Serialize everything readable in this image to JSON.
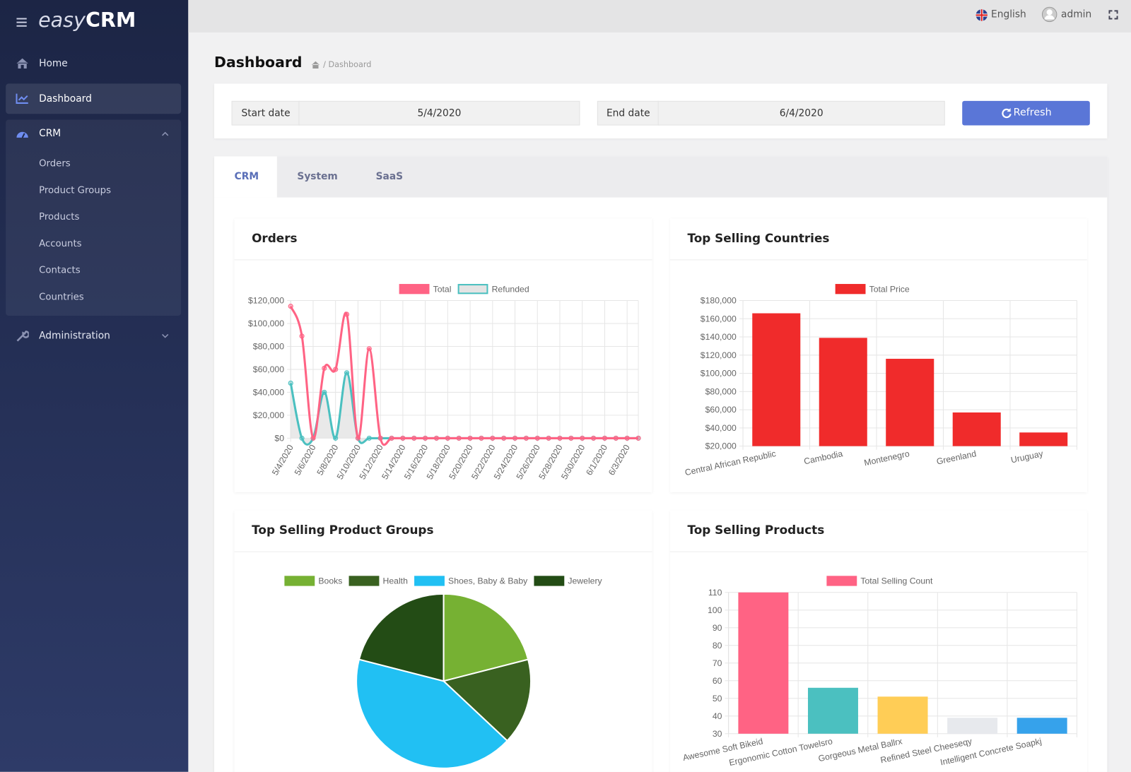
{
  "sidebar": {
    "logo_light": "easy",
    "logo_bold": "CRM",
    "menu": [
      "Home",
      "Dashboard",
      "CRM",
      "Orders",
      "Product Groups",
      "Products",
      "Accounts",
      "Contacts",
      "Countries",
      "Administration"
    ]
  },
  "topbar": {
    "language": "English",
    "user": "admin"
  },
  "page": {
    "title": "Dashboard",
    "breadcrumb": "/ Dashboard"
  },
  "filter": {
    "start_label": "Start date",
    "start_value": "5/4/2020",
    "end_label": "End date",
    "end_value": "6/4/2020",
    "button": "Refresh"
  },
  "tabs": [
    "CRM",
    "System",
    "SaaS"
  ],
  "chart_data": [
    {
      "type": "line",
      "title": "Orders",
      "categories": [
        "5/4/2020",
        null,
        "5/6/2020",
        null,
        "5/8/2020",
        null,
        "5/10/2020",
        null,
        "5/12/2020",
        null,
        "5/14/2020",
        null,
        "5/16/2020",
        null,
        "5/18/2020",
        null,
        "5/20/2020",
        null,
        "5/22/2020",
        null,
        "5/24/2020",
        null,
        "5/26/2020",
        null,
        "5/28/2020",
        null,
        "5/30/2020",
        null,
        "6/1/2020",
        null,
        "6/3/2020",
        null
      ],
      "series": [
        {
          "name": "Total",
          "color": "#ff6384",
          "values": [
            115000,
            89000,
            0,
            61000,
            60000,
            108000,
            0,
            78000,
            0,
            0,
            0,
            0,
            0,
            0,
            0,
            0,
            0,
            0,
            0,
            0,
            0,
            0,
            0,
            0,
            0,
            0,
            0,
            0,
            0,
            0,
            0,
            0
          ]
        },
        {
          "name": "Refunded",
          "color": "#4bc0c0",
          "fill": "#e4e4e4",
          "values": [
            48000,
            0,
            0,
            40000,
            0,
            57000,
            0,
            0,
            0,
            0,
            0,
            0,
            0,
            0,
            0,
            0,
            0,
            0,
            0,
            0,
            0,
            0,
            0,
            0,
            0,
            0,
            0,
            0,
            0,
            0,
            0,
            0
          ]
        }
      ],
      "ylim": [
        0,
        120000
      ],
      "yticks": [
        {
          "value": 0,
          "label": "$0"
        },
        {
          "value": 20000,
          "label": "$20,000"
        },
        {
          "value": 40000,
          "label": "$40,000"
        },
        {
          "value": 60000,
          "label": "$60,000"
        },
        {
          "value": 80000,
          "label": "$80,000"
        },
        {
          "value": 100000,
          "label": "$100,000"
        },
        {
          "value": 120000,
          "label": "$120,000"
        }
      ],
      "grid": true,
      "legend": "top"
    },
    {
      "type": "bar",
      "title": "Top Selling Countries",
      "categories": [
        "Central African Republic",
        "Cambodia",
        "Montenegro",
        "Greenland",
        "Uruguay"
      ],
      "series": [
        {
          "name": "Total Price",
          "color": "#f02b2b",
          "values": [
            166000,
            139000,
            116000,
            57000,
            35000
          ]
        }
      ],
      "ylim": [
        20000,
        180000
      ],
      "yticks": [
        {
          "value": 20000,
          "label": "$20,000"
        },
        {
          "value": 40000,
          "label": "$40,000"
        },
        {
          "value": 60000,
          "label": "$60,000"
        },
        {
          "value": 80000,
          "label": "$80,000"
        },
        {
          "value": 100000,
          "label": "$100,000"
        },
        {
          "value": 120000,
          "label": "$120,000"
        },
        {
          "value": 140000,
          "label": "$140,000"
        },
        {
          "value": 160000,
          "label": "$160,000"
        },
        {
          "value": 180000,
          "label": "$180,000"
        }
      ],
      "grid": true,
      "legend": "top"
    },
    {
      "type": "pie",
      "title": "Top Selling Product Groups",
      "categories": [
        "Books",
        "Health",
        "Shoes, Baby & Baby",
        "Jewelery"
      ],
      "values": [
        21,
        16,
        42,
        21
      ],
      "colors": [
        "#76b133",
        "#396120",
        "#21c0f3",
        "#234c15"
      ],
      "legend": "top"
    },
    {
      "type": "bar",
      "title": "Top Selling Products",
      "categories": [
        "Awesome Soft Bikeid",
        "Ergonomic Cotton Towelsro",
        "Gorgeous Metal Ballrx",
        "Refined Steel Cheeseqy",
        "Intelligent Concrete Soapkj"
      ],
      "series": [
        {
          "name": "Total Selling Count",
          "color": "#ff6384",
          "colors": [
            "#ff6384",
            "#4bc0c0",
            "#ffcd56",
            "#e7e9ed",
            "#36a2eb"
          ],
          "values": [
            110,
            56,
            51,
            39,
            39
          ]
        }
      ],
      "ylim": [
        30,
        110
      ],
      "yticks": [
        30,
        40,
        50,
        60,
        70,
        80,
        90,
        100,
        110
      ],
      "grid": true,
      "legend": "top"
    }
  ]
}
